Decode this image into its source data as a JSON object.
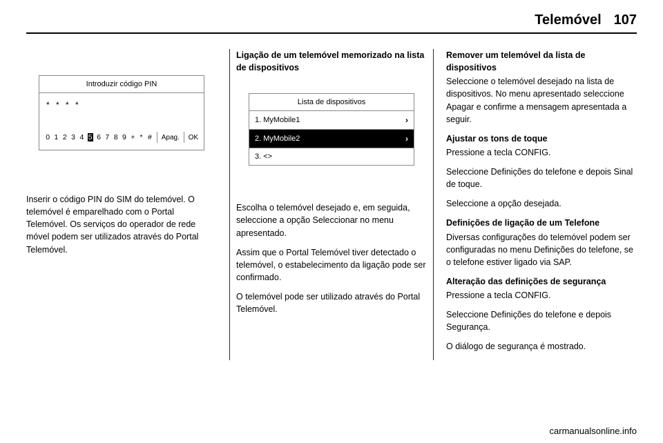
{
  "header": {
    "section": "Telemóvel",
    "page_number": "107"
  },
  "col1": {
    "screen": {
      "title": "Introduzir código PIN",
      "entered": "* * * *",
      "keys": [
        "0",
        "1",
        "2",
        "3",
        "4",
        "5",
        "6",
        "7",
        "8",
        "9",
        "+",
        "*",
        "#"
      ],
      "highlight_index": 5,
      "delete_label": "Apag.",
      "ok_label": "OK"
    },
    "para1": "Inserir o código PIN do SIM do telemóvel. O telemóvel é emparelhado com o Portal Telemóvel. Os serviços do operador de rede móvel podem ser utilizados através do Portal Telemóvel."
  },
  "col2": {
    "heading": "Ligação de um telemóvel memorizado na lista de dispositivos",
    "screen": {
      "title": "Lista de dispositivos",
      "items": [
        {
          "label": "1. MyMobile1",
          "arrow": true,
          "hl": false
        },
        {
          "label": "2. MyMobile2",
          "arrow": true,
          "hl": true
        },
        {
          "label": "3. <>",
          "arrow": false,
          "hl": false
        }
      ]
    },
    "para1": "Escolha o telemóvel desejado e, em seguida, seleccione a opção Seleccionar no menu apresentado.",
    "para2": "Assim que o Portal Telemóvel tiver detectado o telemóvel, o estabelecimento da ligação pode ser confirmado.",
    "para3": "O telemóvel pode ser utilizado através do Portal Telemóvel."
  },
  "col3": {
    "h1": "Remover um telemóvel da lista de dispositivos",
    "p1": "Seleccione o telemóvel desejado na lista de dispositivos. No menu apresentado seleccione Apagar e confirme a mensagem apresentada a seguir.",
    "h2": "Ajustar os tons de toque",
    "p2": "Pressione a tecla CONFIG.",
    "p3": "Seleccione Definições do telefone e depois Sinal de toque.",
    "p4": "Seleccione a opção desejada.",
    "h3": "Definições de ligação de um Telefone",
    "p5": "Diversas configurações do telemóvel podem ser configuradas no menu Definições do telefone, se o telefone estiver ligado via SAP.",
    "h4": "Alteração das definições de segurança",
    "p6": "Pressione a tecla CONFIG.",
    "p7": "Seleccione Definições do telefone e depois Segurança.",
    "p8": "O diálogo de segurança é mostrado."
  },
  "footer": "carmanualsonline.info"
}
